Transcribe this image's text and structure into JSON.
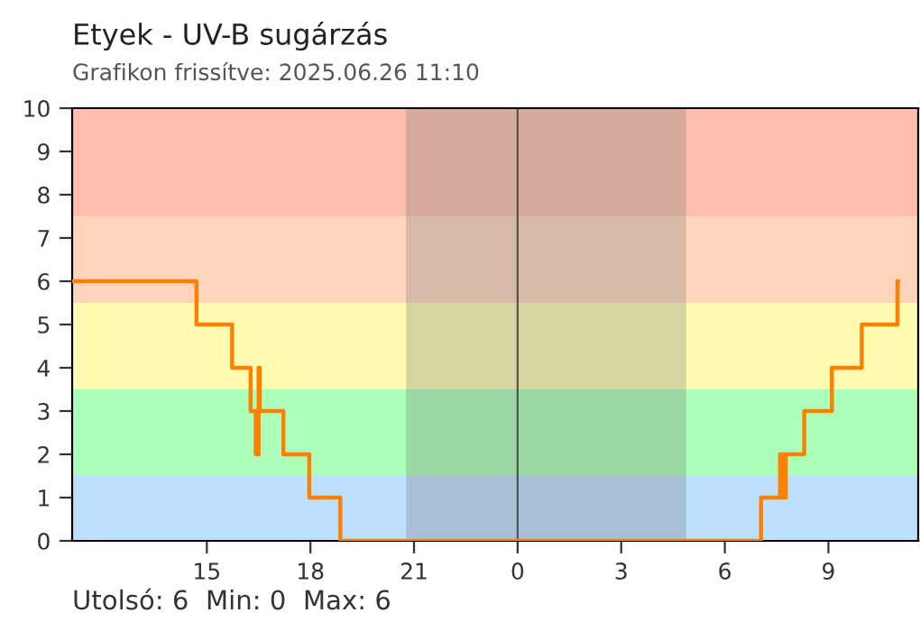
{
  "chart_data": {
    "type": "step",
    "title": "Etyek - UV-B sugárzás",
    "subtitle": "Grafikon frissítve: 2025.06.26 11:10",
    "xlim": [
      "2025-06-25T11:06",
      "2025-06-26T11:36"
    ],
    "xticks": [
      {
        "value": "2025-06-25T15:00",
        "label": "15"
      },
      {
        "value": "2025-06-25T18:00",
        "label": "18"
      },
      {
        "value": "2025-06-25T21:00",
        "label": "21"
      },
      {
        "value": "2025-06-26T00:00",
        "label": "0"
      },
      {
        "value": "2025-06-26T03:00",
        "label": "3"
      },
      {
        "value": "2025-06-26T06:00",
        "label": "6"
      },
      {
        "value": "2025-06-26T09:00",
        "label": "9"
      }
    ],
    "ylim": [
      0,
      10
    ],
    "yticks": [
      0,
      1,
      2,
      3,
      4,
      5,
      6,
      7,
      8,
      9,
      10
    ],
    "series": [
      {
        "color": "#ff8000",
        "x": [
          "2025-06-25T11:06",
          "2025-06-25T14:42",
          "2025-06-25T15:44",
          "2025-06-25T16:16",
          "2025-06-25T16:25",
          "2025-06-25T16:30",
          "2025-06-25T16:32",
          "2025-06-25T17:13",
          "2025-06-25T17:58",
          "2025-06-25T18:52",
          "2025-06-26T07:03",
          "2025-06-26T07:36",
          "2025-06-26T07:41",
          "2025-06-26T07:46",
          "2025-06-26T08:18",
          "2025-06-26T09:06",
          "2025-06-26T09:58",
          "2025-06-26T11:00",
          "2025-06-26T11:01"
        ],
        "values": [
          6,
          5,
          4,
          3,
          2,
          4,
          3,
          2,
          1,
          0,
          1,
          2,
          1,
          2,
          3,
          4,
          5,
          6,
          6
        ]
      }
    ],
    "bands": [
      {
        "axis": "y",
        "from": 0,
        "to": 1.5,
        "color": "#bde0fe"
      },
      {
        "axis": "y",
        "from": 1.5,
        "to": 3.5,
        "color": "#abffb9"
      },
      {
        "axis": "y",
        "from": 3.5,
        "to": 5.5,
        "color": "#fffcb2"
      },
      {
        "axis": "y",
        "from": 5.5,
        "to": 7.5,
        "color": "#ffd6bc"
      },
      {
        "axis": "y",
        "from": 7.5,
        "to": 10,
        "color": "#ffbfae"
      },
      {
        "axis": "x",
        "from": "2025-06-25T20:46",
        "to": "2025-06-26T04:53",
        "color": "#7a7a7a"
      }
    ],
    "ref_lines": [
      {
        "axis": "x",
        "value": "2025-06-26T00:00",
        "color": "#555555"
      }
    ],
    "annotations": [
      "Utolsó: 6  Min: 0  Max: 6"
    ],
    "grid": false
  }
}
